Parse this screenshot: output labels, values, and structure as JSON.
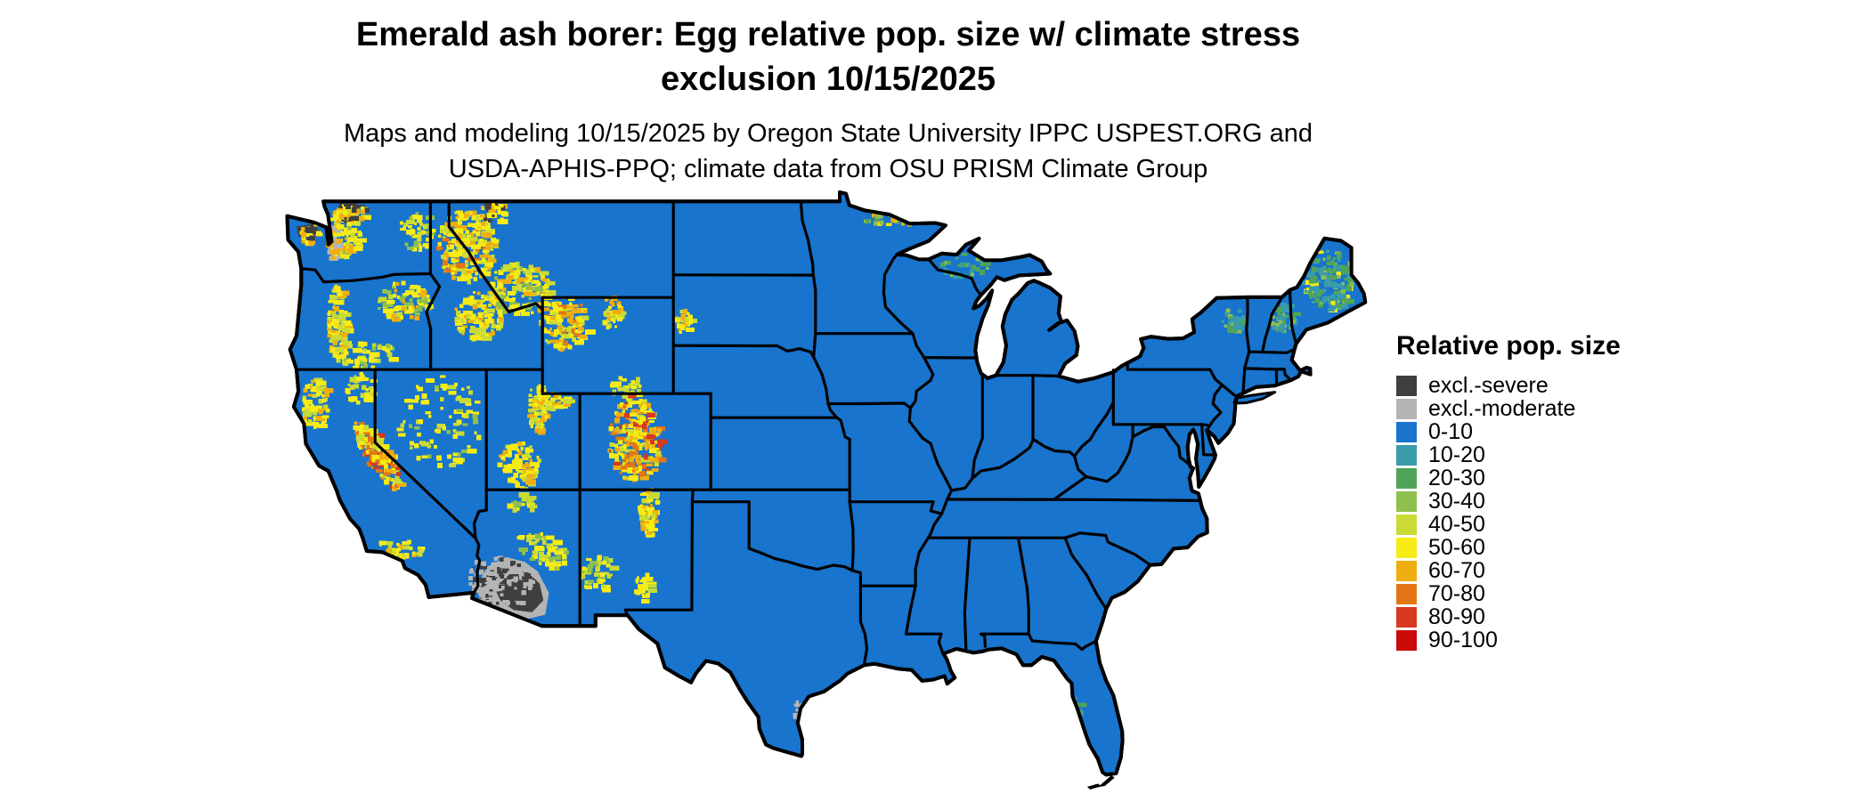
{
  "header": {
    "title_line1": "Emerald ash borer: Egg relative pop. size w/ climate stress",
    "title_line2": "exclusion 10/15/2025",
    "subtitle_line1": "Maps and modeling 10/15/2025 by Oregon State University IPPC USPEST.ORG and",
    "subtitle_line2": "USDA-APHIS-PPQ; climate data from OSU PRISM Climate Group"
  },
  "legend": {
    "title": "Relative pop. size",
    "entries": [
      {
        "label": "excl.-severe",
        "color": "#3f3f3f"
      },
      {
        "label": "excl.-moderate",
        "color": "#b4b4b4"
      },
      {
        "label": "0-10",
        "color": "#1874cd"
      },
      {
        "label": "10-20",
        "color": "#3a9bab"
      },
      {
        "label": "20-30",
        "color": "#4fa557"
      },
      {
        "label": "30-40",
        "color": "#8fbf4d"
      },
      {
        "label": "40-50",
        "color": "#c9db34"
      },
      {
        "label": "50-60",
        "color": "#f6eb14"
      },
      {
        "label": "60-70",
        "color": "#efae10"
      },
      {
        "label": "70-80",
        "color": "#e37614"
      },
      {
        "label": "80-90",
        "color": "#d63920"
      },
      {
        "label": "90-100",
        "color": "#cd0a0a"
      }
    ]
  },
  "map": {
    "region": "Contiguous United States",
    "base_fill": "#1874cd",
    "border_color": "#000000",
    "background": "#ffffff"
  }
}
